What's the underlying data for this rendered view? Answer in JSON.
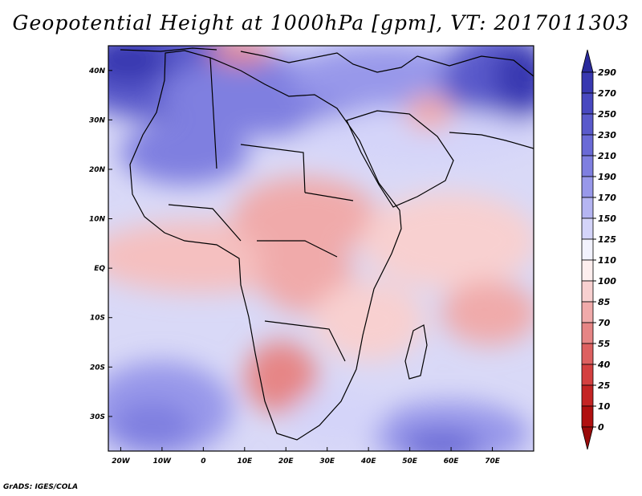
{
  "title": "Geopotential Height at 1000hPa [gpm], VT: 2017011303",
  "credit": "GrADS: IGES/COLA",
  "map": {
    "variable": "Geopotential Height",
    "level": "1000hPa",
    "units": "gpm",
    "valid_time": "2017011303",
    "lon_range": [
      -23,
      80
    ],
    "lat_range": [
      -37,
      45
    ],
    "lon_ticks": [
      {
        "value": -20,
        "label": "20W"
      },
      {
        "value": -10,
        "label": "10W"
      },
      {
        "value": 0,
        "label": "0"
      },
      {
        "value": 10,
        "label": "10E"
      },
      {
        "value": 20,
        "label": "20E"
      },
      {
        "value": 30,
        "label": "30E"
      },
      {
        "value": 40,
        "label": "40E"
      },
      {
        "value": 50,
        "label": "50E"
      },
      {
        "value": 60,
        "label": "60E"
      },
      {
        "value": 70,
        "label": "70E"
      }
    ],
    "lat_ticks": [
      {
        "value": 40,
        "label": "40N"
      },
      {
        "value": 30,
        "label": "30N"
      },
      {
        "value": 20,
        "label": "20N"
      },
      {
        "value": 10,
        "label": "10N"
      },
      {
        "value": 0,
        "label": "EQ"
      },
      {
        "value": -10,
        "label": "10S"
      },
      {
        "value": -20,
        "label": "20S"
      },
      {
        "value": -30,
        "label": "30S"
      }
    ]
  },
  "colorbar": {
    "levels": [
      "290",
      "270",
      "250",
      "230",
      "210",
      "190",
      "170",
      "150",
      "125",
      "110",
      "100",
      "85",
      "70",
      "55",
      "40",
      "25",
      "10",
      "0"
    ],
    "colors": [
      "#2a2a9c",
      "#3838b0",
      "#4848c0",
      "#5a5acb",
      "#6a6ad6",
      "#7f7fe0",
      "#9898ea",
      "#b5b5f2",
      "#d4d4f9",
      "#f2f2fd",
      "#fdeeee",
      "#f8d0d0",
      "#f0aaaa",
      "#e68585",
      "#dd6060",
      "#d44040",
      "#c42424",
      "#b01010",
      "#9a0a0a"
    ]
  }
}
